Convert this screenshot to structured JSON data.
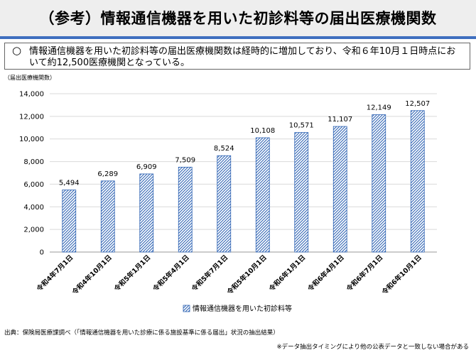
{
  "header": {
    "title": "（参考）情報通信機器を用いた初診料等の届出医療機関数"
  },
  "summary": {
    "bullet": "○",
    "text": "情報通信機器を用いた初診料等の届出医療機関数は経時的に増加しており、令和６年10月１日時点において約12,500医療機関となっている。"
  },
  "chart_data": {
    "type": "bar",
    "ylabel": "（届出医療機関数）",
    "xlabel": "",
    "categories": [
      "令和4年7月1日",
      "令和4年10月1日",
      "令和5年1月1日",
      "令和5年4月1日",
      "令和5年7月1日",
      "令和5年10月1日",
      "令和6年1月1日",
      "令和6年4月1日",
      "令和6年7月1日",
      "令和6年10月1日"
    ],
    "series": [
      {
        "name": "情報通信機器を用いた初診料等",
        "values": [
          5494,
          6289,
          6909,
          7509,
          8524,
          10108,
          10571,
          11107,
          12149,
          12507
        ],
        "labels": [
          "5,494",
          "6,289",
          "6,909",
          "7,509",
          "8,524",
          "10,108",
          "10,571",
          "11,107",
          "12,149",
          "12,507"
        ]
      }
    ],
    "ylim": [
      0,
      14000
    ],
    "yticks": [
      "0",
      "2,000",
      "4,000",
      "6,000",
      "8,000",
      "10,000",
      "12,000",
      "14,000"
    ],
    "grid": true,
    "legend_position": "bottom-center",
    "bar_color": "#2f64b4",
    "bar_fill_pattern": "diagonal-hatch"
  },
  "footer": {
    "source": "出典：保険局医療課調べ（「情報通信機器を用いた診療に係る施設基準に係る届出」状況の抽出結果）",
    "note": "※データ抽出タイミングにより他の公表データと一致しない場合がある"
  }
}
